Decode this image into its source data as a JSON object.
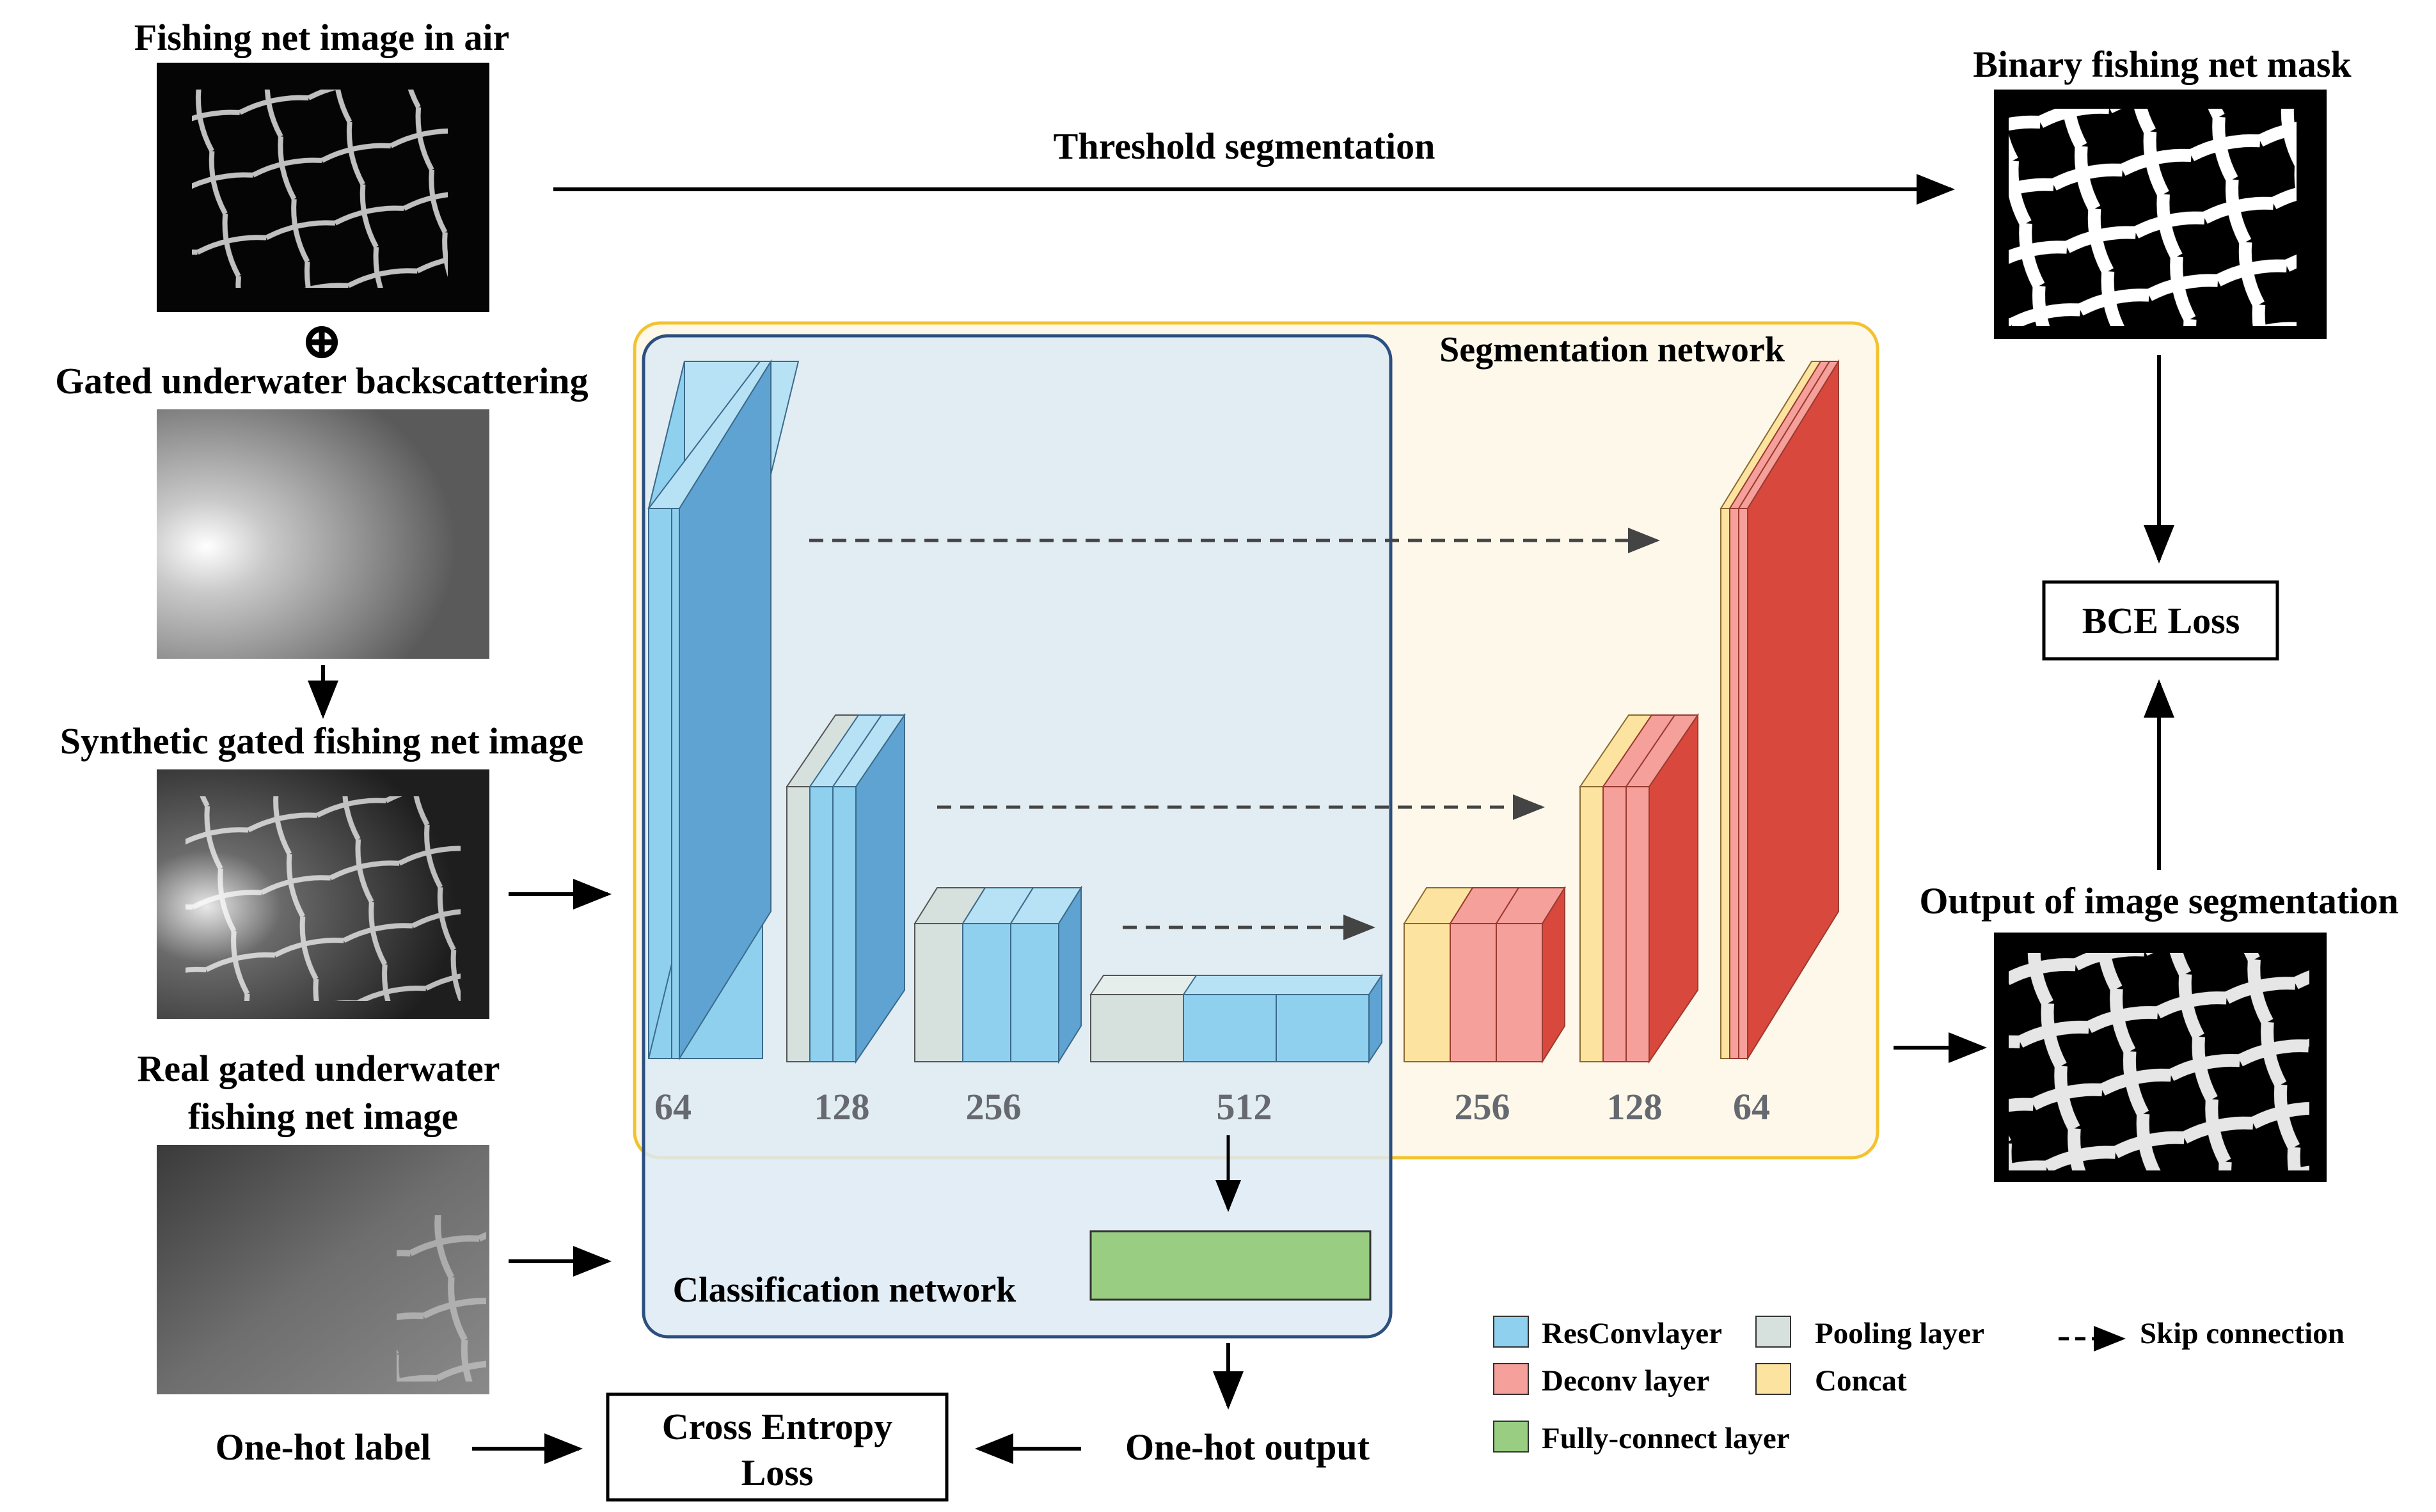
{
  "labels": {
    "fishing_net_air": "Fishing net image in air",
    "gated_backscatter": "Gated underwater backscattering",
    "synthetic_image": "Synthetic gated fishing net image",
    "real_image_line1": "Real gated underwater",
    "real_image_line2": "fishing net image",
    "threshold_segmentation": "Threshold segmentation",
    "binary_mask": "Binary fishing net mask",
    "bce_loss": "BCE Loss",
    "output_segmentation": "Output of image segmentation",
    "segmentation_network": "Segmentation network",
    "classification_network": "Classification network",
    "one_hot_label": "One-hot label",
    "cross_entropy_line1": "Cross Entropy",
    "cross_entropy_line2": "Loss",
    "one_hot_output": "One-hot output",
    "combine_symbol": "⊕"
  },
  "channels": {
    "enc1": "64",
    "enc2": "128",
    "enc3": "256",
    "enc4": "512",
    "dec3": "256",
    "dec2": "128",
    "dec1": "64"
  },
  "legend": {
    "resconv": "ResConvlayer",
    "pooling": "Pooling layer",
    "skip": "Skip connection",
    "deconv": "Deconv layer",
    "concat": "Concat",
    "fully_connect": "Fully-connect layer"
  },
  "colors": {
    "resconv": "#8fd0ee",
    "resconv_dark": "#5fa3d2",
    "pooling": "#d6e1de",
    "deconv": "#f5a09a",
    "deconv_dark": "#d9483c",
    "concat": "#fde3a0",
    "fully_connect": "#98cd82",
    "segmentation_border": "#f2c230",
    "segmentation_fill": "#fdf8ea",
    "classification_border": "#2b4f80",
    "classification_fill": "#ddeaf4"
  }
}
